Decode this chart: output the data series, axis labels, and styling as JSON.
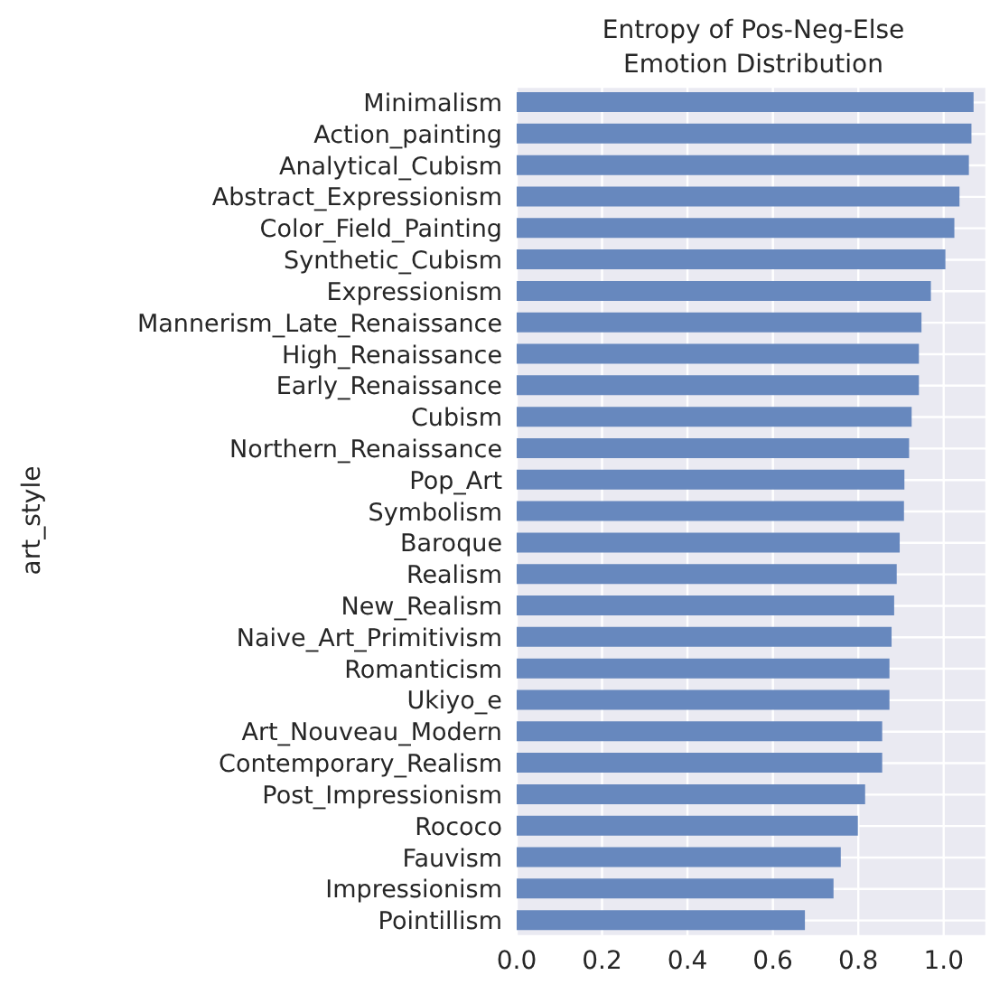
{
  "chart_data": {
    "type": "bar",
    "orientation": "horizontal",
    "title": "Entropy of Pos-Neg-Else\nEmotion Distribution",
    "ylabel": "art_style",
    "categories": [
      "Minimalism",
      "Action_painting",
      "Analytical_Cubism",
      "Abstract_Expressionism",
      "Color_Field_Painting",
      "Synthetic_Cubism",
      "Expressionism",
      "Mannerism_Late_Renaissance",
      "High_Renaissance",
      "Early_Renaissance",
      "Cubism",
      "Northern_Renaissance",
      "Pop_Art",
      "Symbolism",
      "Baroque",
      "Realism",
      "New_Realism",
      "Naive_Art_Primitivism",
      "Romanticism",
      "Ukiyo_e",
      "Art_Nouveau_Modern",
      "Contemporary_Realism",
      "Post_Impressionism",
      "Rococo",
      "Fauvism",
      "Impressionism",
      "Pointillism"
    ],
    "values": [
      1.07,
      1.065,
      1.059,
      1.037,
      1.025,
      1.004,
      0.97,
      0.948,
      0.942,
      0.942,
      0.925,
      0.919,
      0.908,
      0.907,
      0.897,
      0.89,
      0.884,
      0.878,
      0.873,
      0.873,
      0.856,
      0.856,
      0.816,
      0.799,
      0.759,
      0.742,
      0.675
    ],
    "color": "#6788be",
    "xlim": [
      0,
      1.1
    ],
    "xticks": [
      {
        "value": 0,
        "label": "0.0"
      },
      0.2,
      0.4,
      0.6,
      0.8,
      {
        "value": 1,
        "label": "1.0"
      }
    ],
    "grid": true,
    "legend": false
  }
}
